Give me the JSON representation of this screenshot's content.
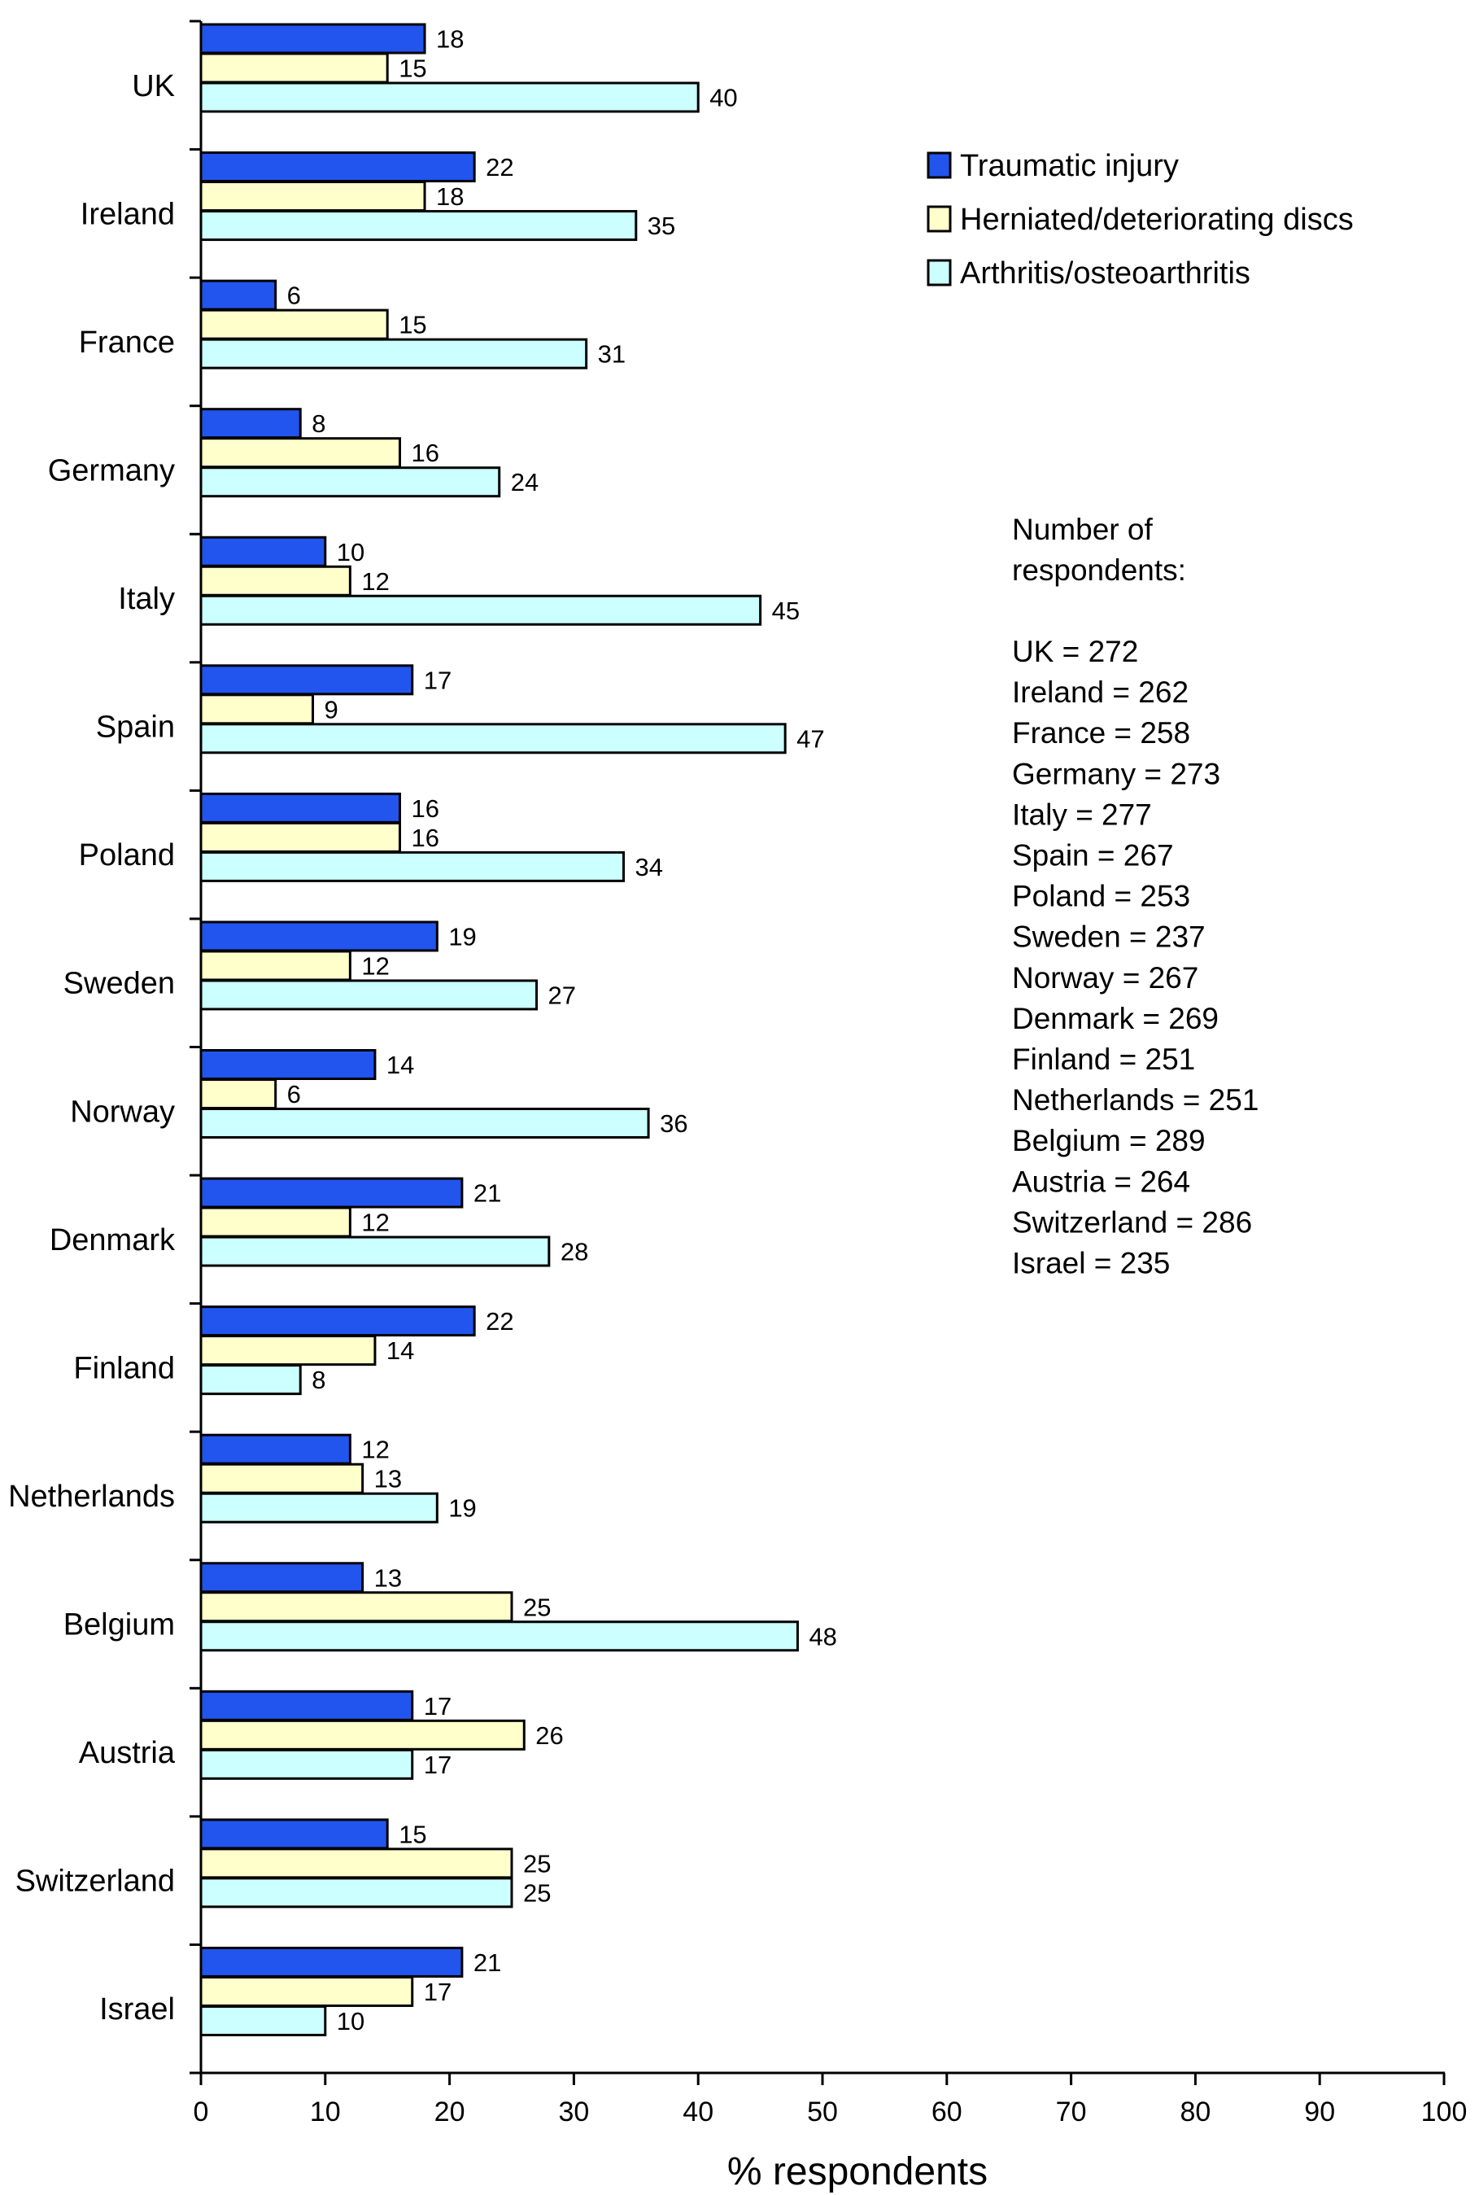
{
  "chart_data": {
    "type": "bar",
    "orientation": "horizontal",
    "categories": [
      "UK",
      "Ireland",
      "France",
      "Germany",
      "Italy",
      "Spain",
      "Poland",
      "Sweden",
      "Norway",
      "Denmark",
      "Finland",
      "Netherlands",
      "Belgium",
      "Austria",
      "Switzerland",
      "Israel"
    ],
    "series": [
      {
        "name": "Traumatic injury",
        "color": "#2255ee",
        "values": [
          18,
          22,
          6,
          8,
          10,
          17,
          16,
          19,
          14,
          21,
          22,
          12,
          13,
          17,
          15,
          21
        ]
      },
      {
        "name": "Herniated/deteriorating discs",
        "color": "#ffffcc",
        "values": [
          15,
          18,
          15,
          16,
          12,
          9,
          16,
          12,
          6,
          12,
          14,
          13,
          25,
          26,
          25,
          17
        ]
      },
      {
        "name": "Arthritis/osteoarthritis",
        "color": "#ccffff",
        "values": [
          40,
          35,
          31,
          24,
          45,
          47,
          34,
          27,
          36,
          28,
          8,
          19,
          48,
          17,
          25,
          10
        ]
      }
    ],
    "xlabel": "% respondents",
    "xlim": [
      0,
      100
    ],
    "xticks": [
      0,
      10,
      20,
      30,
      40,
      50,
      60,
      70,
      80,
      90,
      100
    ],
    "legend_position": "top-right",
    "grid": false,
    "annotation": {
      "title_lines": [
        "Number of",
        "respondents:"
      ],
      "lines": [
        "UK = 272",
        "Ireland = 262",
        "France = 258",
        "Germany = 273",
        "Italy = 277",
        "Spain = 267",
        "Poland = 253",
        "Sweden = 237",
        "Norway = 267",
        "Denmark = 269",
        "Finland = 251",
        "Netherlands = 251",
        "Belgium = 289",
        "Austria = 264",
        "Switzerland = 286",
        "Israel = 235"
      ]
    }
  }
}
